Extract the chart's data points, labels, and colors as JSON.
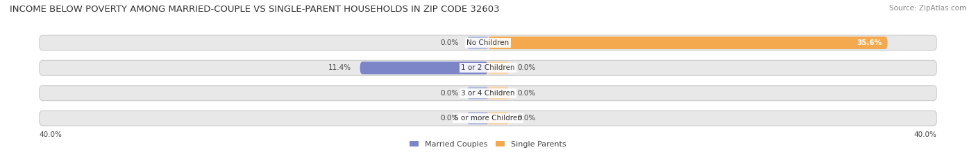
{
  "title": "INCOME BELOW POVERTY AMONG MARRIED-COUPLE VS SINGLE-PARENT HOUSEHOLDS IN ZIP CODE 32603",
  "source": "Source: ZipAtlas.com",
  "categories": [
    "No Children",
    "1 or 2 Children",
    "3 or 4 Children",
    "5 or more Children"
  ],
  "married_values": [
    0.0,
    11.4,
    0.0,
    0.0
  ],
  "single_values": [
    35.6,
    0.0,
    0.0,
    0.0
  ],
  "married_color": "#7b85c8",
  "married_color_light": "#b5bee0",
  "single_color": "#f5a94e",
  "single_color_light": "#f8d5a8",
  "bar_bg_color": "#e8e8e8",
  "bar_bg_border": "#cccccc",
  "xlim": 40.0,
  "axis_label_left": "40.0%",
  "axis_label_right": "40.0%",
  "title_fontsize": 9.5,
  "source_fontsize": 7.5,
  "label_fontsize": 7.5,
  "category_fontsize": 7.5,
  "legend_fontsize": 8,
  "background_color": "#ffffff"
}
